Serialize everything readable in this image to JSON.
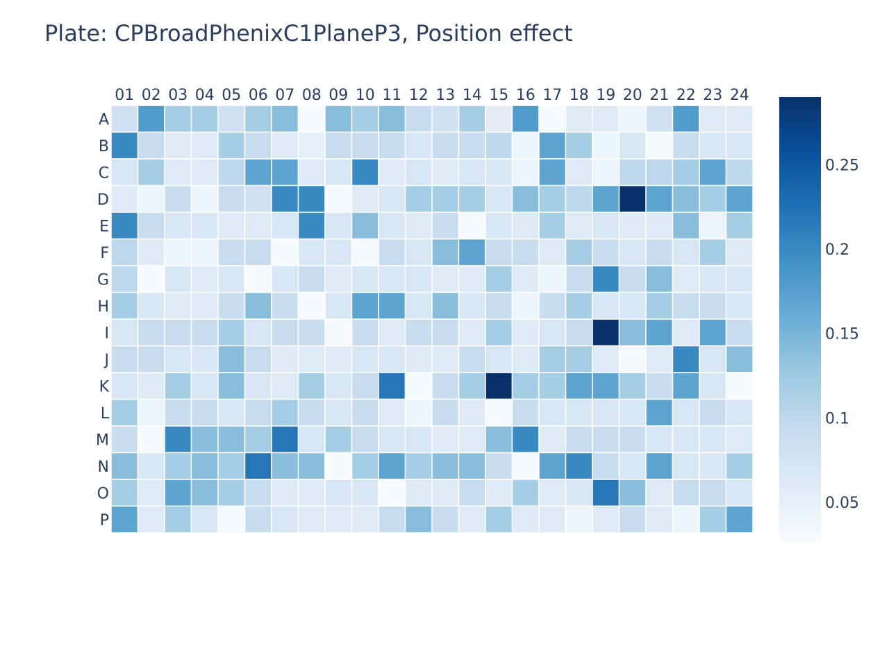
{
  "chart_data": {
    "type": "heatmap",
    "title": "Plate: CPBroadPhenixC1PlaneP3, Position effect",
    "columns": [
      "01",
      "02",
      "03",
      "04",
      "05",
      "06",
      "07",
      "08",
      "09",
      "10",
      "11",
      "12",
      "13",
      "14",
      "15",
      "16",
      "17",
      "18",
      "19",
      "20",
      "21",
      "22",
      "23",
      "24"
    ],
    "rows": [
      "A",
      "B",
      "C",
      "D",
      "E",
      "F",
      "G",
      "H",
      "I",
      "J",
      "K",
      "L",
      "M",
      "N",
      "O",
      "P"
    ],
    "values": [
      [
        0.08,
        0.18,
        0.12,
        0.12,
        0.08,
        0.12,
        0.14,
        0.03,
        0.14,
        0.12,
        0.14,
        0.09,
        0.08,
        0.12,
        null,
        0.18,
        0.03,
        0.06,
        0.06,
        0.04,
        0.08,
        0.18,
        0.06,
        0.06
      ],
      [
        0.2,
        0.09,
        0.06,
        0.06,
        0.12,
        0.09,
        0.06,
        0.05,
        0.09,
        0.09,
        0.09,
        0.07,
        0.09,
        0.09,
        0.1,
        0.04,
        0.17,
        0.12,
        0.04,
        0.07,
        0.03,
        0.09,
        0.07,
        0.07
      ],
      [
        0.07,
        0.12,
        0.06,
        0.06,
        0.1,
        0.17,
        0.17,
        0.06,
        0.07,
        0.2,
        0.06,
        0.07,
        0.06,
        0.07,
        0.07,
        0.04,
        0.17,
        0.06,
        0.04,
        0.1,
        0.1,
        0.12,
        0.17,
        0.1
      ],
      [
        0.06,
        0.04,
        0.09,
        0.04,
        0.09,
        0.08,
        0.2,
        0.2,
        0.03,
        0.06,
        0.07,
        0.12,
        0.12,
        0.12,
        0.07,
        0.14,
        0.12,
        0.1,
        0.17,
        0.29,
        0.17,
        0.14,
        0.12,
        0.17
      ],
      [
        0.2,
        0.09,
        0.07,
        0.07,
        0.06,
        0.06,
        0.07,
        0.2,
        0.07,
        0.14,
        0.07,
        0.06,
        0.09,
        0.03,
        0.07,
        0.06,
        0.12,
        0.06,
        0.07,
        0.06,
        0.06,
        0.14,
        0.04,
        0.12
      ],
      [
        0.1,
        0.06,
        0.04,
        0.04,
        0.09,
        0.09,
        0.03,
        0.07,
        0.07,
        0.03,
        0.09,
        0.07,
        0.14,
        0.17,
        0.09,
        0.09,
        0.06,
        0.12,
        0.09,
        0.07,
        0.09,
        0.07,
        0.12,
        0.06
      ],
      [
        0.1,
        0.03,
        0.07,
        0.06,
        0.07,
        0.03,
        0.07,
        0.09,
        0.06,
        0.07,
        0.07,
        0.07,
        0.06,
        0.06,
        0.12,
        0.06,
        0.04,
        0.09,
        0.2,
        0.09,
        0.14,
        0.06,
        0.07,
        0.07
      ],
      [
        0.12,
        0.07,
        0.06,
        0.06,
        0.09,
        0.14,
        0.09,
        0.03,
        0.07,
        0.17,
        0.17,
        0.07,
        0.14,
        0.07,
        0.09,
        0.04,
        0.09,
        0.12,
        0.07,
        0.07,
        0.12,
        0.09,
        0.09,
        0.07
      ],
      [
        0.07,
        0.09,
        0.09,
        0.09,
        0.12,
        0.07,
        0.09,
        0.09,
        0.03,
        0.09,
        0.06,
        0.09,
        0.09,
        0.06,
        0.12,
        0.06,
        0.07,
        0.09,
        0.29,
        0.14,
        0.17,
        0.06,
        0.17,
        0.09
      ],
      [
        0.09,
        0.09,
        0.07,
        0.07,
        0.14,
        0.09,
        0.06,
        0.06,
        0.06,
        0.07,
        0.07,
        0.06,
        0.06,
        0.09,
        0.07,
        0.06,
        0.12,
        0.12,
        0.06,
        0.03,
        0.06,
        0.2,
        0.07,
        0.14
      ],
      [
        0.07,
        0.06,
        0.12,
        0.07,
        0.14,
        0.07,
        0.06,
        0.12,
        0.07,
        0.09,
        0.22,
        0.03,
        0.09,
        0.12,
        0.29,
        0.12,
        0.12,
        0.17,
        0.17,
        0.12,
        0.09,
        0.17,
        0.07,
        0.03
      ],
      [
        0.12,
        0.04,
        0.09,
        0.09,
        0.07,
        0.09,
        0.12,
        0.09,
        0.07,
        0.09,
        0.06,
        0.04,
        0.09,
        0.06,
        0.03,
        0.09,
        0.07,
        0.07,
        0.07,
        0.07,
        0.17,
        0.07,
        0.09,
        0.07
      ],
      [
        0.09,
        0.03,
        0.2,
        0.14,
        0.14,
        0.12,
        0.22,
        0.07,
        0.12,
        0.09,
        0.07,
        0.07,
        0.06,
        0.06,
        0.14,
        0.2,
        0.06,
        0.09,
        0.09,
        0.09,
        0.07,
        0.07,
        0.07,
        0.06
      ],
      [
        0.14,
        0.07,
        0.12,
        0.14,
        0.12,
        0.22,
        0.14,
        0.14,
        0.03,
        0.12,
        0.17,
        0.12,
        0.14,
        0.14,
        0.09,
        0.03,
        0.17,
        0.2,
        0.09,
        0.07,
        0.17,
        0.07,
        0.07,
        0.12
      ],
      [
        0.12,
        0.06,
        0.17,
        0.14,
        0.12,
        0.09,
        0.06,
        0.06,
        0.07,
        0.07,
        0.03,
        0.06,
        0.06,
        0.09,
        0.06,
        0.12,
        0.06,
        0.07,
        0.22,
        0.14,
        0.06,
        0.09,
        0.09,
        0.07
      ],
      [
        0.17,
        0.06,
        0.12,
        0.07,
        0.03,
        0.09,
        0.07,
        0.06,
        0.06,
        0.06,
        0.09,
        0.14,
        0.09,
        0.06,
        0.12,
        0.06,
        0.06,
        0.04,
        0.06,
        0.09,
        0.06,
        0.04,
        0.12,
        0.17
      ]
    ],
    "zlim": [
      0.027,
      0.29
    ],
    "colorscale": "Blues",
    "colorbar_ticks": [
      "0.05",
      "0.1",
      "0.15",
      "0.2",
      "0.25"
    ],
    "colorbar_tick_values": [
      0.05,
      0.1,
      0.15,
      0.2,
      0.25
    ]
  }
}
